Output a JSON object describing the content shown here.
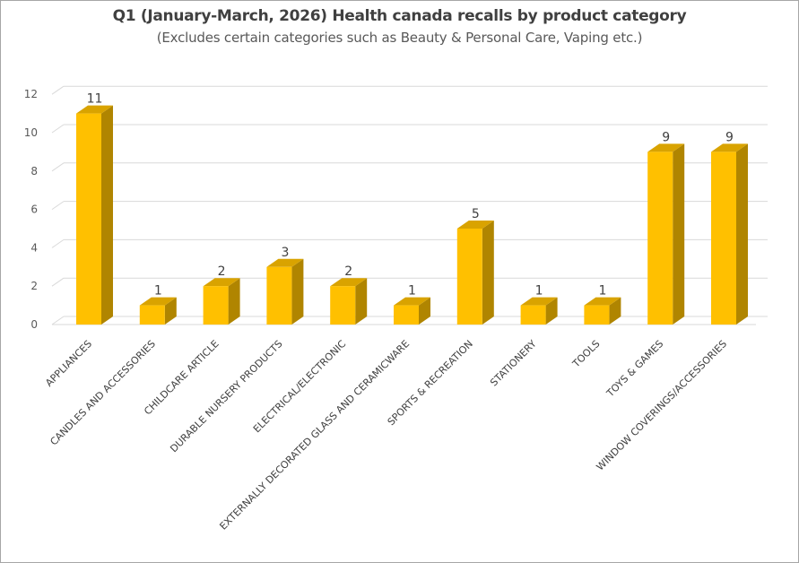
{
  "chart_data": {
    "type": "bar",
    "title": "Q1 (January-March, 2026) Health canada recalls by product category",
    "subtitle": "(Excludes certain categories such as Beauty & Personal Care, Vaping etc.)",
    "categories": [
      "APPLIANCES",
      "CANDLES AND ACCESSORIES",
      "CHILDCARE ARTICLE",
      "DURABLE NURSERY PRODUCTS",
      "ELECTRICAL/ELECTRONIC",
      "EXTERNALLY DECORATED GLASS AND CERAMICWARE",
      "SPORTS & RECREATION",
      "STATIONERY",
      "TOOLS",
      "TOYS & GAMES",
      "WINDOW COVERINGS/ACCESSORIES"
    ],
    "values": [
      11,
      1,
      2,
      3,
      2,
      1,
      5,
      1,
      1,
      9,
      9
    ],
    "ylim": [
      0,
      12
    ],
    "yticks": [
      0,
      2,
      4,
      6,
      8,
      10,
      12
    ],
    "grid": true,
    "data_labels": true,
    "bar_style": "3d",
    "colors": {
      "bar_front": "#FFC000",
      "bar_side": "#B08500",
      "bar_top": "#D9A300",
      "gridline": "#D9D9D9"
    }
  }
}
